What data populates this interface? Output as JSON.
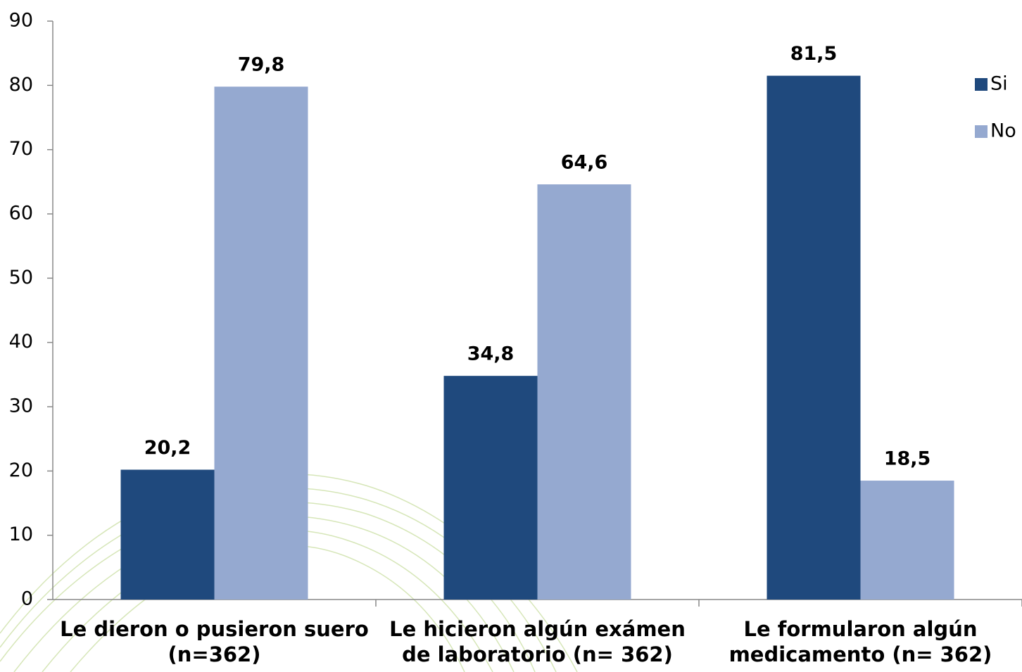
{
  "chart_data": {
    "type": "bar",
    "categories": [
      "Le dieron o pusieron suero (n=362)",
      "Le hicieron algún exámen de laboratorio (n= 362)",
      "Le formularon algún medicamento (n= 362)"
    ],
    "series": [
      {
        "name": "Si",
        "color": "#1f497d",
        "values": [
          20.2,
          34.8,
          81.5
        ],
        "value_labels": [
          "20,2",
          "34,8",
          "81,5"
        ]
      },
      {
        "name": "No",
        "color": "#95a9d0",
        "values": [
          79.8,
          64.6,
          18.5
        ],
        "value_labels": [
          "79,8",
          "64,6",
          "18,5"
        ]
      }
    ],
    "ylim": [
      0,
      90
    ],
    "yticks": [
      0,
      10,
      20,
      30,
      40,
      50,
      60,
      70,
      80,
      90
    ],
    "legend": "right"
  }
}
